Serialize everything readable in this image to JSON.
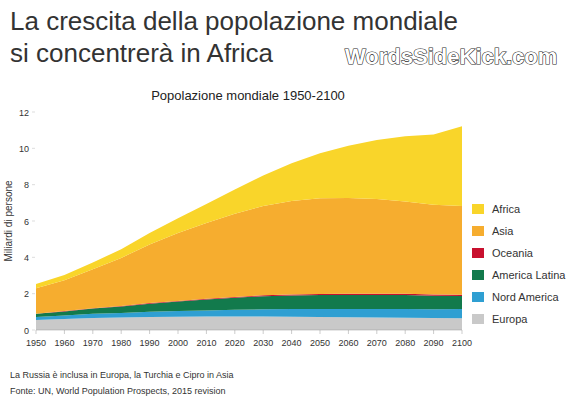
{
  "chart_data": {
    "type": "area",
    "stacked": true,
    "title": "La crescita della popolazione mondiale",
    "subtitle": "si concentrerà in Africa",
    "chart_title": "Popolazione mondiale 1950-2100",
    "watermark": "WordsSideKick.com",
    "y_label": "Miliardi di persone",
    "notes": [
      "La Russia è inclusa in Europa, la Turchia e Cipro in Asia",
      "Fonte: UN, World Population Prospects, 2015 revision"
    ],
    "legend": "right",
    "x": [
      1950,
      1960,
      1970,
      1980,
      1990,
      2000,
      2010,
      2020,
      2030,
      2040,
      2050,
      2060,
      2070,
      2080,
      2090,
      2100
    ],
    "xlim": [
      1950,
      2100
    ],
    "xticks": [
      1950,
      1960,
      1970,
      1980,
      1990,
      2000,
      2010,
      2020,
      2030,
      2040,
      2050,
      2060,
      2070,
      2080,
      2090,
      2100
    ],
    "ylim": [
      0,
      12
    ],
    "yticks": [
      0,
      2,
      4,
      6,
      8,
      10,
      12
    ],
    "series": [
      {
        "name": "Europa",
        "color": "#c9c9c9",
        "values": [
          0.55,
          0.6,
          0.66,
          0.69,
          0.72,
          0.73,
          0.74,
          0.74,
          0.74,
          0.73,
          0.72,
          0.7,
          0.69,
          0.68,
          0.66,
          0.65
        ]
      },
      {
        "name": "Nord America",
        "color": "#2f9fd2",
        "values": [
          0.17,
          0.2,
          0.23,
          0.25,
          0.28,
          0.31,
          0.34,
          0.37,
          0.4,
          0.42,
          0.43,
          0.45,
          0.46,
          0.47,
          0.48,
          0.5
        ]
      },
      {
        "name": "America Latina",
        "color": "#127a4c",
        "values": [
          0.17,
          0.22,
          0.29,
          0.36,
          0.45,
          0.53,
          0.6,
          0.67,
          0.72,
          0.75,
          0.77,
          0.78,
          0.78,
          0.77,
          0.75,
          0.72
        ]
      },
      {
        "name": "Oceania",
        "color": "#c8102e",
        "values": [
          0.01,
          0.02,
          0.02,
          0.02,
          0.03,
          0.03,
          0.04,
          0.04,
          0.05,
          0.05,
          0.06,
          0.06,
          0.07,
          0.07,
          0.07,
          0.07
        ]
      },
      {
        "name": "Asia",
        "color": "#f6ad2f",
        "values": [
          1.4,
          1.7,
          2.14,
          2.65,
          3.23,
          3.74,
          4.17,
          4.58,
          4.92,
          5.15,
          5.27,
          5.28,
          5.21,
          5.09,
          4.93,
          4.89
        ]
      },
      {
        "name": "Africa",
        "color": "#f9d52a",
        "values": [
          0.23,
          0.29,
          0.37,
          0.48,
          0.63,
          0.81,
          1.04,
          1.34,
          1.68,
          2.08,
          2.48,
          2.87,
          3.25,
          3.58,
          3.87,
          4.39
        ]
      }
    ]
  }
}
